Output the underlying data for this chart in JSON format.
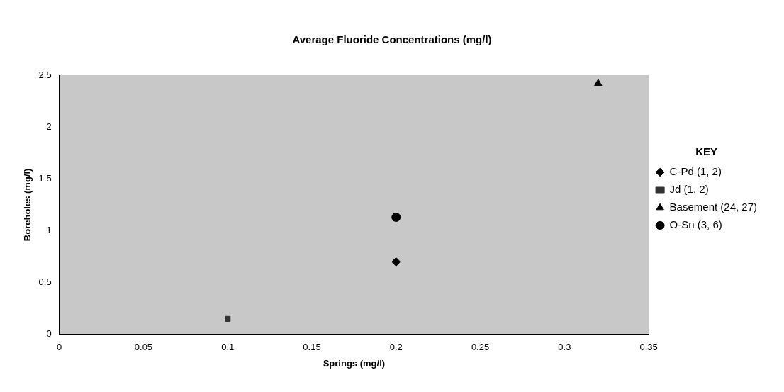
{
  "chart_data": {
    "type": "scatter",
    "title": "Average Fluoride Concentrations (mg/l)",
    "xlabel": "Springs (mg/l)",
    "ylabel": "Boreholes (mg/l)",
    "legend_title": "KEY",
    "legend": "right",
    "xlim": [
      0,
      0.35
    ],
    "xticks": [
      0,
      0.05,
      0.1,
      0.15,
      0.2,
      0.25,
      0.3,
      0.35
    ],
    "ylim": [
      0,
      2.5
    ],
    "yticks": [
      0,
      0.5,
      1,
      1.5,
      2,
      2.5
    ],
    "grid": false,
    "series": [
      {
        "name": "C-Pd (1, 2)",
        "color": "#000000",
        "marker": "diamond",
        "x": [
          0.2
        ],
        "values": [
          0.7
        ]
      },
      {
        "name": "Jd (1, 2)",
        "color": "#333333",
        "marker": "square",
        "x": [
          0.1
        ],
        "values": [
          0.15
        ]
      },
      {
        "name": "Basement (24, 27)",
        "color": "#000000",
        "marker": "triangle",
        "x": [
          0.32
        ],
        "values": [
          2.42
        ]
      },
      {
        "name": "O-Sn (3, 6)",
        "color": "#000000",
        "marker": "circle",
        "x": [
          0.2
        ],
        "values": [
          1.13
        ]
      }
    ]
  }
}
